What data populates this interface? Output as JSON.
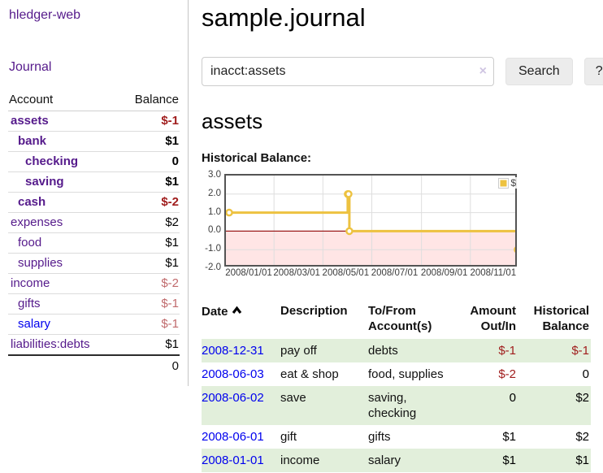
{
  "app": {
    "title": "hledger-web",
    "nav_journal": "Journal"
  },
  "colors": {
    "link_purple": "#551a8b",
    "link_blue": "#0000ee",
    "negative_strong": "#a01d1d",
    "negative_soft": "#c06a6c",
    "row_shaded_green": "#e2efdb",
    "chart_gold": "#edc240"
  },
  "sidebar": {
    "headers": {
      "account": "Account",
      "balance": "Balance"
    },
    "accounts": [
      {
        "name": "assets",
        "depth": 0,
        "bold": true,
        "balance": "$-1",
        "balance_style": "neg-strong",
        "link_color": "purple"
      },
      {
        "name": "bank",
        "depth": 1,
        "bold": true,
        "balance": "$1",
        "balance_style": "pos",
        "link_color": "purple"
      },
      {
        "name": "checking",
        "depth": 2,
        "bold": true,
        "balance": "0",
        "balance_style": "pos",
        "link_color": "purple"
      },
      {
        "name": "saving",
        "depth": 2,
        "bold": true,
        "balance": "$1",
        "balance_style": "pos",
        "link_color": "purple"
      },
      {
        "name": "cash",
        "depth": 1,
        "bold": true,
        "balance": "$-2",
        "balance_style": "neg-strong",
        "link_color": "purple"
      },
      {
        "name": "expenses",
        "depth": 0,
        "bold": false,
        "balance": "$2",
        "balance_style": "pos",
        "link_color": "purple"
      },
      {
        "name": "food",
        "depth": 1,
        "bold": false,
        "balance": "$1",
        "balance_style": "pos",
        "link_color": "purple"
      },
      {
        "name": "supplies",
        "depth": 1,
        "bold": false,
        "balance": "$1",
        "balance_style": "pos",
        "link_color": "purple"
      },
      {
        "name": "income",
        "depth": 0,
        "bold": false,
        "balance": "$-2",
        "balance_style": "neg-soft",
        "link_color": "purple"
      },
      {
        "name": "gifts",
        "depth": 1,
        "bold": false,
        "balance": "$-1",
        "balance_style": "neg-soft",
        "link_color": "purple"
      },
      {
        "name": "salary",
        "depth": 1,
        "bold": false,
        "balance": "$-1",
        "balance_style": "neg-soft",
        "link_color": "blue"
      },
      {
        "name": "liabilities:debts",
        "depth": 0,
        "bold": false,
        "balance": "$1",
        "balance_style": "pos",
        "link_color": "purple"
      }
    ],
    "total": "0"
  },
  "header": {
    "title": "sample.journal"
  },
  "search": {
    "value": "inacct:assets",
    "clear_icon": "×",
    "button_label": "Search",
    "help_label": "?"
  },
  "account_page": {
    "title": "assets",
    "chart_label": "Historical Balance:"
  },
  "chart_data": {
    "type": "line",
    "title": "Historical Balance",
    "steps": true,
    "series": [
      {
        "name": "$",
        "color": "#edc240",
        "points": [
          {
            "date": "2008-01-01",
            "value": 1
          },
          {
            "date": "2008-06-01",
            "value": 2
          },
          {
            "date": "2008-06-02",
            "value": 2
          },
          {
            "date": "2008-06-03",
            "value": 0
          },
          {
            "date": "2008-12-31",
            "value": -1
          }
        ]
      }
    ],
    "x_ticks": [
      "2008/01/01",
      "2008/03/01",
      "2008/05/01",
      "2008/07/01",
      "2008/09/01",
      "2008/11/01"
    ],
    "y_ticks": [
      3.0,
      2.0,
      1.0,
      0.0,
      -1.0,
      -2.0
    ],
    "ylim": [
      -2,
      3
    ],
    "grid": true,
    "negative_region_color": "rgba(255,70,70,0.14)",
    "zero_line_color": "#9c1c1c",
    "grid_line_color": "#dedede",
    "border_color": "#545454",
    "legend": {
      "label": "$",
      "position": "top-right"
    }
  },
  "transactions": {
    "headers": {
      "date": "Date",
      "description": "Description",
      "accounts": "To/From Account(s)",
      "amount": "Amount Out/In",
      "balance": "Historical Balance"
    },
    "rows": [
      {
        "date": "2008-12-31",
        "description": "pay off",
        "accounts": "debts",
        "amount": "$-1",
        "amount_style": "neg",
        "balance": "$-1",
        "balance_style": "neg",
        "shaded": true
      },
      {
        "date": "2008-06-03",
        "description": "eat & shop",
        "accounts": "food, supplies",
        "amount": "$-2",
        "amount_style": "neg",
        "balance": "0",
        "balance_style": "pos",
        "shaded": false
      },
      {
        "date": "2008-06-02",
        "description": "save",
        "accounts": "saving, checking",
        "amount": "0",
        "amount_style": "pos",
        "balance": "$2",
        "balance_style": "pos",
        "shaded": true
      },
      {
        "date": "2008-06-01",
        "description": "gift",
        "accounts": "gifts",
        "amount": "$1",
        "amount_style": "pos",
        "balance": "$2",
        "balance_style": "pos",
        "shaded": false
      },
      {
        "date": "2008-01-01",
        "description": "income",
        "accounts": "salary",
        "amount": "$1",
        "amount_style": "pos",
        "balance": "$1",
        "balance_style": "pos",
        "shaded": true
      }
    ]
  }
}
